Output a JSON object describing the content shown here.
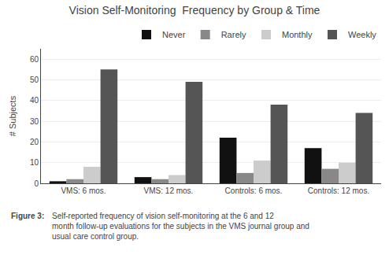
{
  "chart_data": {
    "type": "bar",
    "title": "Vision Self-Monitoring  Frequency by Group & Time",
    "y_label": "# Subjects",
    "categories": [
      "VMS: 6 mos.",
      "VMS: 12 mos.",
      "Controls: 6 mos.",
      "Controls: 12 mos."
    ],
    "series": [
      {
        "name": "Never",
        "color": "#111111",
        "values": [
          1,
          3,
          22,
          17
        ]
      },
      {
        "name": "Rarely",
        "color": "#888888",
        "values": [
          2,
          2,
          5,
          7
        ]
      },
      {
        "name": "Monthly",
        "color": "#cccccc",
        "values": [
          8,
          4,
          11,
          10
        ]
      },
      {
        "name": "Weekly",
        "color": "#555555",
        "values": [
          55,
          49,
          38,
          34
        ]
      }
    ],
    "ylim": [
      0,
      65
    ],
    "yticks": [
      0,
      10,
      20,
      30,
      40,
      50,
      60
    ],
    "grid": true,
    "legend": "upper right",
    "annotations": [
      "Figure 3:",
      "Self-reported frequency of vision self-monitoring at the 6 and 12\nmonth follow-up evaluations for the subjects in the VMS journal group and\nusual care control group."
    ]
  }
}
